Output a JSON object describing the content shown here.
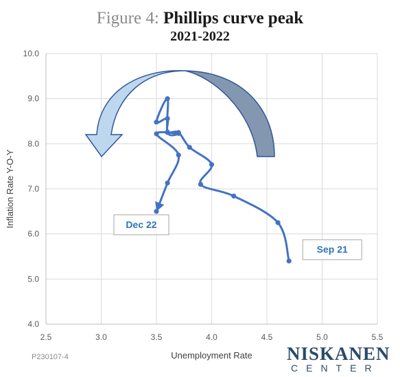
{
  "title_prefix": "Figure 4:",
  "title_main": "Phillips curve peak",
  "subtitle": "2021-2022",
  "footer_code": "P230107-4",
  "logo_top": "NISKANEN",
  "logo_bottom": "CENTER",
  "chart_data": {
    "type": "line",
    "xlabel": "Unemployment Rate",
    "ylabel": "Inflation Rate Y-O-Y",
    "xlim": [
      2.5,
      5.5
    ],
    "ylim": [
      4.0,
      10.0
    ],
    "xticks": [
      "2.5",
      "3.0",
      "3.5",
      "4.0",
      "4.5",
      "5.0",
      "5.5"
    ],
    "yticks": [
      "4.0",
      "5.0",
      "6.0",
      "7.0",
      "8.0",
      "9.0",
      "10.0"
    ],
    "grid": true,
    "line_color": "#4472c4",
    "series": [
      {
        "x": [
          4.7,
          4.6,
          4.2,
          3.9,
          4.0,
          3.8,
          3.7,
          3.6,
          3.6,
          3.5,
          3.6,
          3.6,
          3.7,
          3.5,
          3.7,
          3.6,
          3.5
        ],
        "y": [
          5.4,
          6.25,
          6.84,
          7.1,
          7.54,
          7.92,
          8.25,
          8.26,
          8.56,
          8.48,
          9.0,
          8.25,
          8.23,
          8.22,
          7.75,
          7.13,
          6.5
        ]
      }
    ],
    "annotations": [
      {
        "text": "Sep 21",
        "x": 4.7,
        "y": 5.4
      },
      {
        "text": "Dec 22",
        "x": 3.5,
        "y": 6.5
      }
    ],
    "arrow_colors": {
      "front": "#bdd7ee",
      "back": "#8497b0",
      "outline": "#2f5597"
    }
  }
}
